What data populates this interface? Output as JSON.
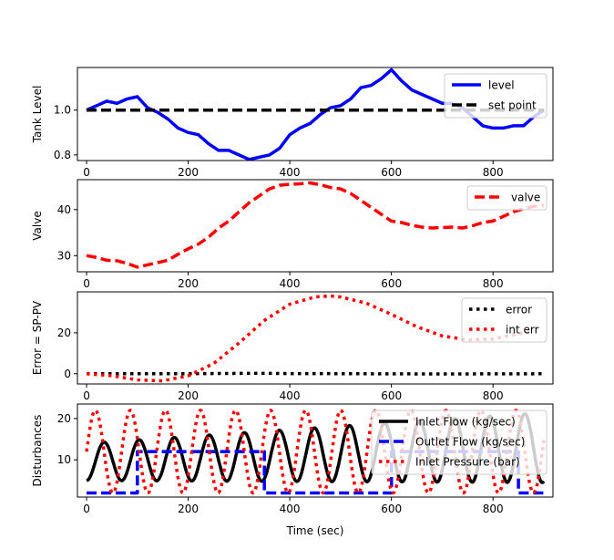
{
  "chart_data": [
    {
      "type": "line",
      "ylabel": "Tank Level",
      "xlim": [
        -18,
        918
      ],
      "ylim": [
        0.775,
        1.19
      ],
      "xticks": [
        "0",
        "200",
        "400",
        "600",
        "800"
      ],
      "yticks": [
        "0.8",
        "1.0"
      ],
      "legend_position": "upper right",
      "series": [
        {
          "name": "level",
          "color": "#0000ff",
          "style": "solid",
          "x": [
            0,
            20,
            40,
            60,
            80,
            100,
            120,
            140,
            160,
            180,
            200,
            220,
            240,
            260,
            280,
            300,
            320,
            340,
            360,
            380,
            400,
            420,
            440,
            460,
            480,
            500,
            520,
            540,
            560,
            580,
            600,
            620,
            640,
            660,
            680,
            700,
            720,
            740,
            760,
            780,
            800,
            820,
            840,
            860,
            880,
            900
          ],
          "y": [
            1.0,
            1.02,
            1.04,
            1.03,
            1.05,
            1.06,
            1.01,
            0.99,
            0.96,
            0.92,
            0.9,
            0.89,
            0.85,
            0.82,
            0.82,
            0.8,
            0.78,
            0.79,
            0.8,
            0.83,
            0.89,
            0.92,
            0.94,
            0.98,
            1.01,
            1.02,
            1.05,
            1.1,
            1.11,
            1.14,
            1.18,
            1.13,
            1.09,
            1.07,
            1.05,
            1.03,
            1.03,
            1.01,
            0.97,
            0.93,
            0.92,
            0.92,
            0.93,
            0.93,
            0.97,
            1.0
          ]
        },
        {
          "name": "set point",
          "color": "#000000",
          "style": "dashed",
          "x": [
            0,
            900
          ],
          "y": [
            1.0,
            1.0
          ]
        }
      ]
    },
    {
      "type": "line",
      "ylabel": "Valve",
      "xlim": [
        -18,
        918
      ],
      "ylim": [
        26.5,
        46.5
      ],
      "xticks": [
        "0",
        "200",
        "400",
        "600",
        "800"
      ],
      "yticks": [
        "30",
        "40"
      ],
      "legend_position": "upper right",
      "series": [
        {
          "name": "valve",
          "color": "#ff0000",
          "style": "dashed",
          "x": [
            0,
            20,
            40,
            60,
            80,
            100,
            120,
            140,
            160,
            180,
            200,
            220,
            240,
            260,
            280,
            300,
            320,
            340,
            360,
            380,
            400,
            420,
            440,
            460,
            480,
            500,
            520,
            540,
            560,
            580,
            600,
            620,
            640,
            660,
            680,
            700,
            720,
            740,
            760,
            780,
            800,
            820,
            840,
            860,
            880,
            900
          ],
          "y": [
            30.0,
            29.6,
            29.0,
            28.9,
            28.3,
            27.5,
            28.0,
            28.5,
            29.0,
            30.3,
            31.5,
            32.5,
            34.0,
            36.0,
            37.5,
            39.5,
            41.5,
            43.0,
            44.5,
            45.3,
            45.5,
            45.6,
            45.8,
            45.4,
            44.8,
            44.5,
            43.5,
            42.0,
            40.5,
            39.0,
            37.5,
            37.2,
            36.6,
            36.2,
            36.0,
            36.1,
            36.2,
            36.0,
            36.5,
            37.2,
            37.5,
            38.5,
            39.5,
            40.2,
            40.7,
            41.0
          ]
        }
      ]
    },
    {
      "type": "line",
      "ylabel": "Error = SP-PV",
      "xlim": [
        -18,
        918
      ],
      "ylim": [
        -5.0,
        40.0
      ],
      "xticks": [
        "0",
        "200",
        "400",
        "600",
        "800"
      ],
      "yticks": [
        "0",
        "20"
      ],
      "legend_position": "upper right",
      "series": [
        {
          "name": "error",
          "color": "#000000",
          "style": "dotted",
          "x": [
            0,
            100,
            200,
            300,
            340,
            400,
            500,
            600,
            700,
            800,
            900
          ],
          "y": [
            0.0,
            0.0,
            0.05,
            0.15,
            0.2,
            0.1,
            0.05,
            -0.05,
            -0.1,
            -0.05,
            0.0
          ]
        },
        {
          "name": "int err",
          "color": "#ff0000",
          "style": "dotted",
          "x": [
            0,
            50,
            100,
            150,
            200,
            250,
            300,
            350,
            400,
            450,
            480,
            500,
            550,
            600,
            650,
            700,
            750,
            800,
            850,
            880
          ],
          "y": [
            0.0,
            -1.0,
            -3.0,
            -3.5,
            -1.0,
            5.0,
            15.0,
            26.0,
            34.0,
            37.5,
            38.0,
            37.5,
            34.5,
            29.0,
            23.0,
            18.5,
            16.5,
            17.0,
            19.5,
            21.0
          ]
        }
      ]
    },
    {
      "type": "line",
      "ylabel": "Disturbances",
      "xlabel": "Time (sec)",
      "xlim": [
        -18,
        918
      ],
      "ylim": [
        1.0,
        23.5
      ],
      "xticks": [
        "0",
        "200",
        "400",
        "600",
        "800"
      ],
      "yticks": [
        "10",
        "20"
      ],
      "legend_position": "upper right",
      "series": [
        {
          "name": "Inlet Flow (kg/sec)",
          "color": "#000000",
          "style": "solid",
          "generator": {
            "kind": "sine",
            "center_start": 9.5,
            "center_end": 13.0,
            "amp_start": 4.5,
            "amp_end": 8.5,
            "period": 69,
            "phase_x": 17.25,
            "xmax": 900
          }
        },
        {
          "name": "Outlet Flow (kg/sec)",
          "color": "#0000ff",
          "style": "dashed",
          "x": [
            0,
            100,
            100,
            350,
            350,
            600,
            600,
            850,
            850,
            900
          ],
          "y": [
            2,
            2,
            12,
            12,
            2,
            2,
            12,
            12,
            2,
            2
          ]
        },
        {
          "name": "Inlet Pressure (bar)",
          "color": "#ff0000",
          "style": "dotted",
          "generator": {
            "kind": "sine",
            "center_start": 12.0,
            "center_end": 12.0,
            "amp_start": 10.0,
            "amp_end": 10.0,
            "period": 69,
            "phase_x": 0,
            "xmax": 900
          }
        }
      ]
    }
  ]
}
